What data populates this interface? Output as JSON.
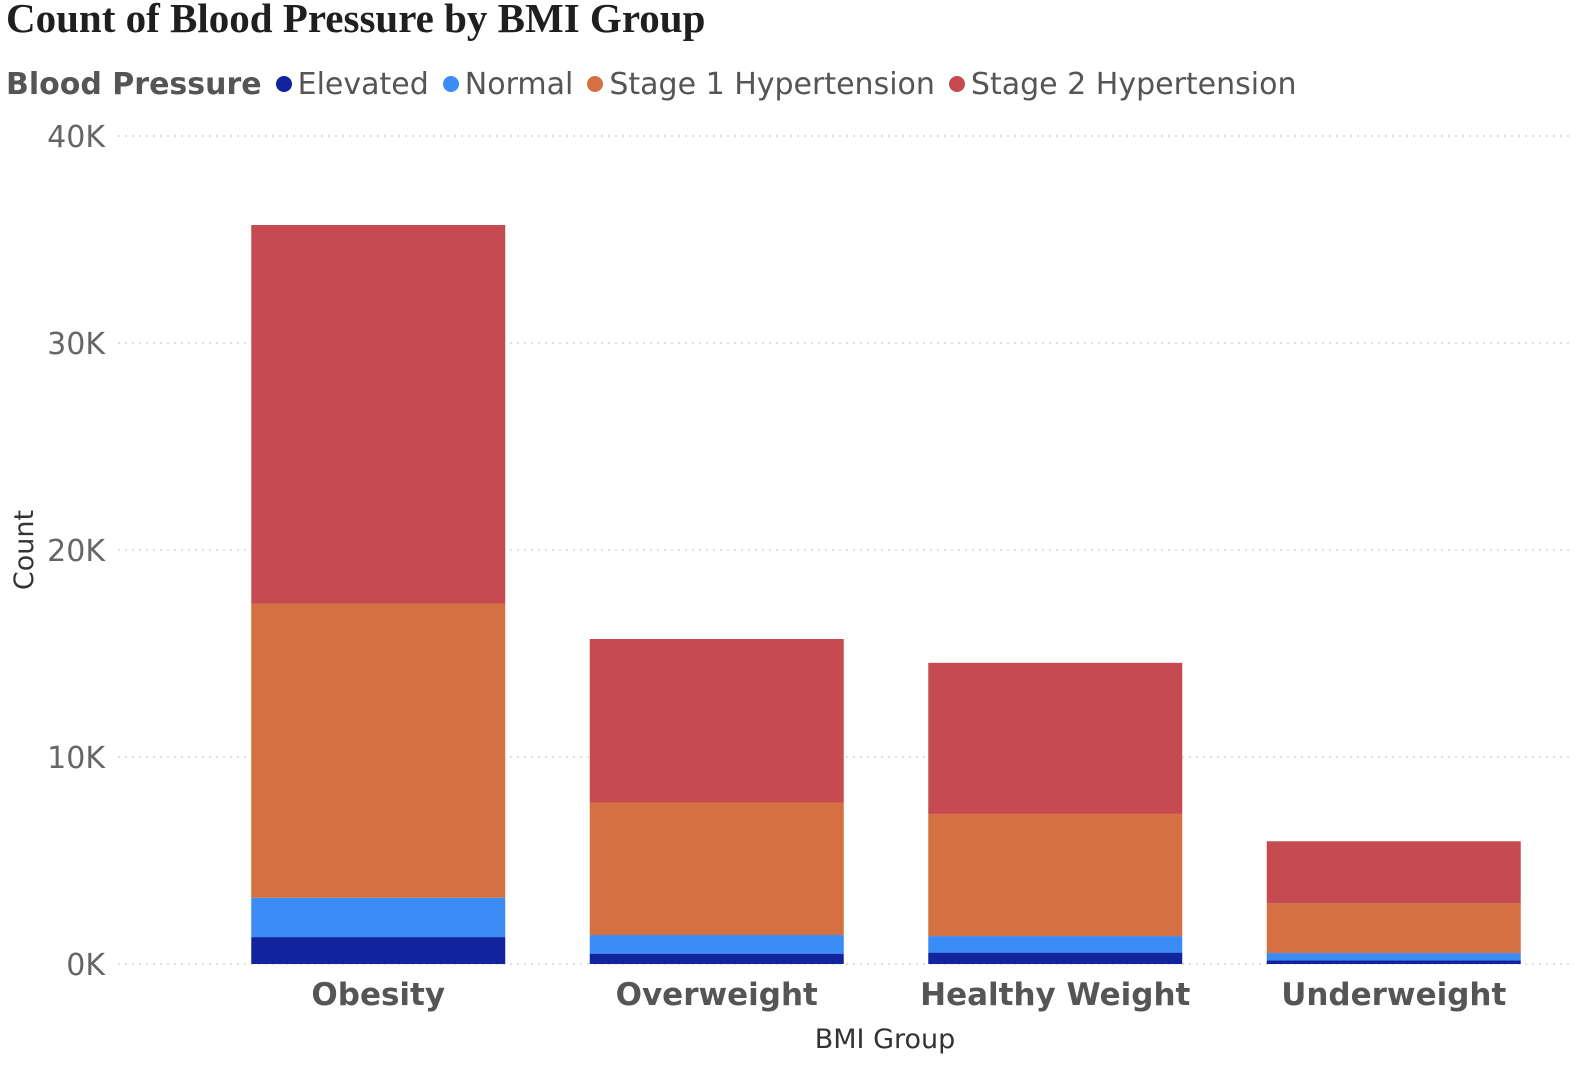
{
  "chart_data": {
    "type": "bar",
    "stacked": true,
    "title": "Count of Blood Pressure by BMI Group",
    "legend_title": "Blood Pressure",
    "legend_position": "top-left",
    "xlabel": "BMI Group",
    "ylabel": "Count",
    "ylim": [
      0,
      40000
    ],
    "yticks": [
      0,
      10000,
      20000,
      30000,
      40000
    ],
    "ytick_labels": [
      "0K",
      "10K",
      "20K",
      "30K",
      "40K"
    ],
    "grid": true,
    "categories": [
      "Obesity",
      "Overweight",
      "Healthy Weight",
      "Underweight"
    ],
    "series": [
      {
        "name": "Elevated",
        "color": "#12239e",
        "values": [
          1300,
          500,
          550,
          180
        ]
      },
      {
        "name": "Normal",
        "color": "#3b8cf5",
        "values": [
          1900,
          900,
          800,
          350
        ]
      },
      {
        "name": "Stage 1 Hypertension",
        "color": "#d47041",
        "values": [
          14200,
          6400,
          5900,
          2400
        ]
      },
      {
        "name": "Stage 2 Hypertension",
        "color": "#c64b51",
        "values": [
          18300,
          7900,
          7300,
          3000
        ]
      }
    ]
  }
}
